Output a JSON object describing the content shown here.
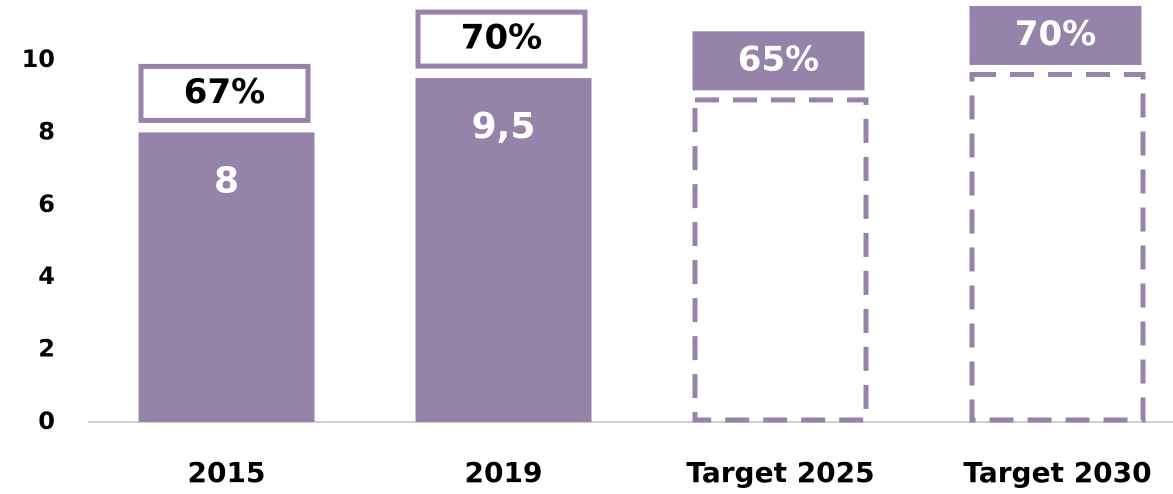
{
  "chart_data": {
    "type": "bar",
    "categories": [
      "2015",
      "2019",
      "Target 2025",
      "Target 2030"
    ],
    "values": [
      8,
      9.5,
      8.9,
      9.6
    ],
    "value_labels": [
      "8",
      "9,5",
      null,
      null
    ],
    "bar_style": [
      "solid",
      "solid",
      "dashed",
      "dashed"
    ],
    "share_values": [
      67,
      70,
      65,
      70
    ],
    "share_labels": [
      "67%",
      "70%",
      "65%",
      "70%"
    ],
    "color": "#9583aa",
    "ylim": [
      0,
      10
    ],
    "yticks": [
      0,
      2,
      4,
      6,
      8,
      10
    ]
  }
}
